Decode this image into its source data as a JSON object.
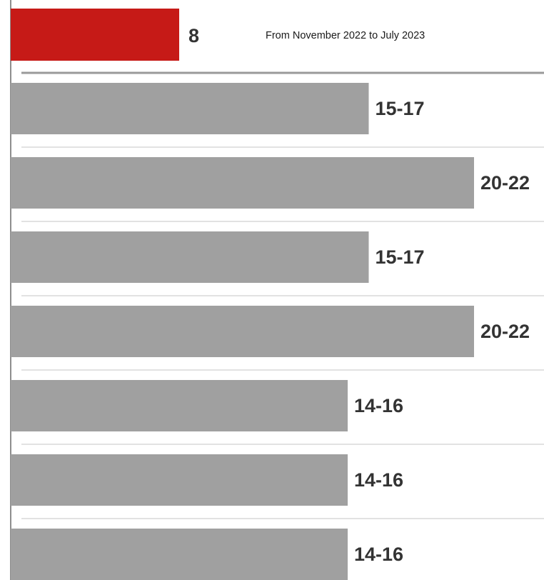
{
  "chart_data": {
    "type": "bar",
    "orientation": "horizontal",
    "title": "",
    "xlabel": "",
    "ylabel": "",
    "grid": false,
    "legend": "none",
    "header_bar": {
      "value": 8,
      "label": "8",
      "color": "#c61a17"
    },
    "note": "From November 2022 to July 2023",
    "bars": [
      {
        "label": "15-17",
        "value_min": 15,
        "value_max": 17
      },
      {
        "label": "20-22",
        "value_min": 20,
        "value_max": 22
      },
      {
        "label": "15-17",
        "value_min": 15,
        "value_max": 17
      },
      {
        "label": "20-22",
        "value_min": 20,
        "value_max": 22
      },
      {
        "label": "14-16",
        "value_min": 14,
        "value_max": 16
      },
      {
        "label": "14-16",
        "value_min": 14,
        "value_max": 16
      },
      {
        "label": "14-16",
        "value_min": 14,
        "value_max": 16
      }
    ],
    "bar_color": "#a0a0a0",
    "separator_color": "#d9d9d9",
    "axis_color": "#444444"
  }
}
